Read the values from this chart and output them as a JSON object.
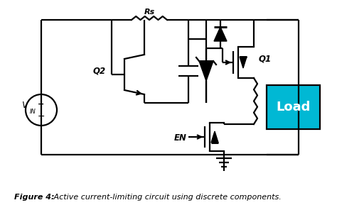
{
  "bg_color": "#ffffff",
  "cc": "#000000",
  "load_color": "#00b8d4",
  "load_text": "Load",
  "load_text_color": "#ffffff",
  "vin_label": "V",
  "vin_sub": "IN",
  "q1_label": "Q1",
  "q2_label": "Q2",
  "rs_label": "Rs",
  "en_label": "EN",
  "caption_bold": "Figure 4:",
  "caption_rest": " Active current-limiting circuit using discrete components.",
  "fig_width": 4.74,
  "fig_height": 2.96,
  "dpi": 100
}
